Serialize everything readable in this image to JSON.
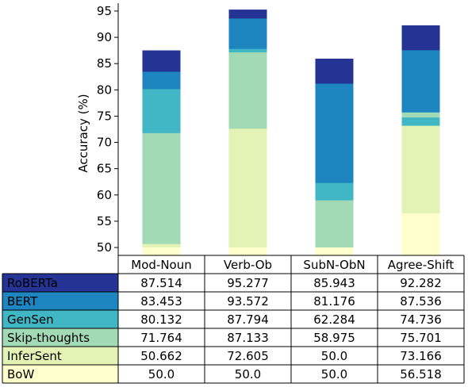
{
  "chart_data": {
    "type": "bar",
    "stacked": false,
    "layered_overlap": true,
    "ylabel": "Accuracy (%)",
    "ylim": [
      48.5,
      96.5
    ],
    "yticks": [
      50,
      55,
      60,
      65,
      70,
      75,
      80,
      85,
      90,
      95
    ],
    "categories": [
      "Mod-Noun",
      "Verb-Ob",
      "SubN-ObN",
      "Agree-Shift"
    ],
    "series": [
      {
        "name": "RoBERTa",
        "color": "#253494",
        "values": [
          87.514,
          95.277,
          85.943,
          92.282
        ]
      },
      {
        "name": "BERT",
        "color": "#1d86c0",
        "values": [
          83.453,
          93.572,
          81.176,
          87.536
        ]
      },
      {
        "name": "GenSen",
        "color": "#41b6c4",
        "values": [
          80.132,
          87.794,
          62.284,
          74.736
        ]
      },
      {
        "name": "Skip-thoughts",
        "color": "#a1dab4",
        "values": [
          71.764,
          87.133,
          58.975,
          75.701
        ]
      },
      {
        "name": "InferSent",
        "color": "#e3f3b5",
        "values": [
          50.662,
          72.605,
          50.0,
          73.166
        ]
      },
      {
        "name": "BoW",
        "color": "#ffffcc",
        "values": [
          50.0,
          50.0,
          50.0,
          56.518
        ]
      }
    ],
    "table": {
      "header": [
        "Mod-Noun",
        "Verb-Ob",
        "SubN-ObN",
        "Agree-Shift"
      ],
      "rows": [
        {
          "label": "RoBERTa",
          "cells": [
            "87.514",
            "95.277",
            "85.943",
            "92.282"
          ]
        },
        {
          "label": "BERT",
          "cells": [
            "83.453",
            "93.572",
            "81.176",
            "87.536"
          ]
        },
        {
          "label": "GenSen",
          "cells": [
            "80.132",
            "87.794",
            "62.284",
            "74.736"
          ]
        },
        {
          "label": "Skip-thoughts",
          "cells": [
            "71.764",
            "87.133",
            "58.975",
            "75.701"
          ]
        },
        {
          "label": "InferSent",
          "cells": [
            "50.662",
            "72.605",
            "50.0",
            "73.166"
          ]
        },
        {
          "label": "BoW",
          "cells": [
            "50.0",
            "50.0",
            "50.0",
            "56.518"
          ]
        }
      ]
    },
    "grid": false,
    "legend": "row-labels-in-table"
  }
}
